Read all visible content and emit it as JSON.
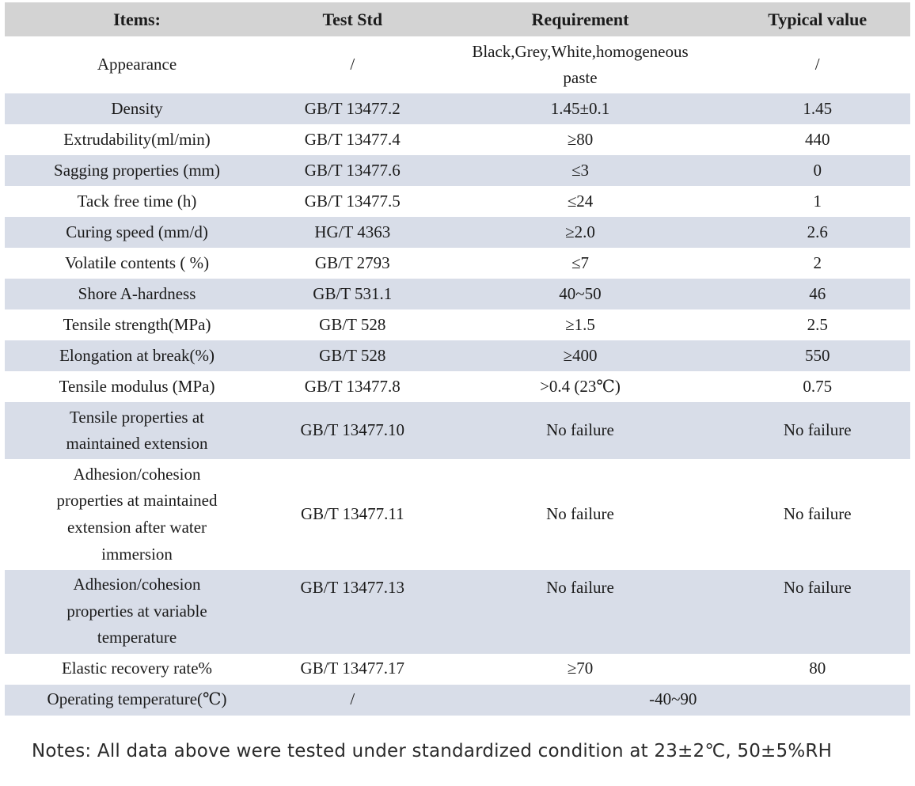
{
  "table": {
    "columns": [
      "Items:",
      "Test Std",
      "Requirement",
      "Typical value"
    ],
    "rows": [
      {
        "item": "Appearance",
        "std": "/",
        "requirement": "Black,Grey,White,homogeneous\npaste",
        "typical": "/"
      },
      {
        "item": "Density",
        "std": "GB/T 13477.2",
        "requirement": "1.45±0.1",
        "typical": "1.45"
      },
      {
        "item": "Extrudability(ml/min)",
        "std": "GB/T 13477.4",
        "requirement": "≥80",
        "typical": "440"
      },
      {
        "item": "Sagging properties (mm)",
        "std": "GB/T 13477.6",
        "requirement": "≤3",
        "typical": "0"
      },
      {
        "item": "Tack free time (h)",
        "std": "GB/T 13477.5",
        "requirement": "≤24",
        "typical": "1"
      },
      {
        "item": "Curing speed (mm/d)",
        "std": "HG/T 4363",
        "requirement": "≥2.0",
        "typical": "2.6"
      },
      {
        "item": "Volatile contents ( %)",
        "std": "GB/T 2793",
        "requirement": "≤7",
        "typical": "2"
      },
      {
        "item": "Shore A-hardness",
        "std": "GB/T 531.1",
        "requirement": "40~50",
        "typical": "46"
      },
      {
        "item": "Tensile strength(MPa)",
        "std": "GB/T 528",
        "requirement": "≥1.5",
        "typical": "2.5"
      },
      {
        "item": "Elongation at break(%)",
        "std": "GB/T 528",
        "requirement": "≥400",
        "typical": "550"
      },
      {
        "item": "Tensile modulus (MPa)",
        "std": "GB/T 13477.8",
        "requirement": ">0.4 (23℃)",
        "typical": "0.75"
      },
      {
        "item": "Tensile properties at\nmaintained extension",
        "std": "GB/T 13477.10",
        "requirement": "No failure",
        "typical": "No failure"
      },
      {
        "item": "Adhesion/cohesion\nproperties at maintained\nextension after water\nimmersion",
        "std": "GB/T 13477.11",
        "requirement": "No failure",
        "typical": "No failure"
      },
      {
        "item": "Adhesion/cohesion\nproperties at variable\ntemperature",
        "std": "GB/T 13477.13",
        "requirement": "No failure",
        "typical": "No failure"
      },
      {
        "item": "Elastic recovery rate%",
        "std": "GB/T 13477.17",
        "requirement": "≥70",
        "typical": "80"
      },
      {
        "item": "Operating temperature(℃)",
        "std": "/",
        "requirement_merged": "-40~90"
      }
    ]
  },
  "notes": "Notes: All data above were tested under standardized condition at 23±2℃, 50±5%RH",
  "colors": {
    "header_bg": "#d3d3d3",
    "stripe_bg": "#d8dde8",
    "text": "#1b1b1b"
  }
}
